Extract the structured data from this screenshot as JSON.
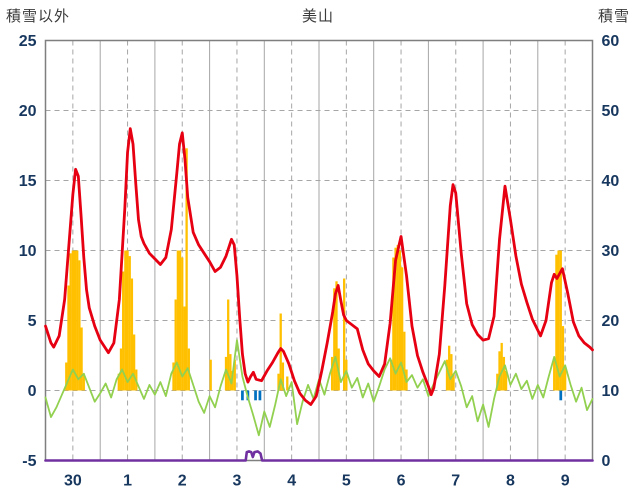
{
  "chart_data": {
    "type": "line",
    "title": "美山",
    "left_axis": {
      "label": "積雪以外",
      "ticks": [
        25,
        20,
        15,
        10,
        5,
        0,
        -5
      ],
      "min": -5,
      "max": 25
    },
    "right_axis": {
      "label": "積雪",
      "ticks": [
        60,
        50,
        40,
        30,
        20,
        10,
        0
      ],
      "min": 0,
      "max": 60
    },
    "x_axis": {
      "day_labels": [
        "30",
        "1",
        "2",
        "3",
        "4",
        "5",
        "6",
        "7",
        "8",
        "9"
      ],
      "days": 10
    },
    "style": {
      "grid_color": "#a6a6a6",
      "border_color": "#7f7f7f",
      "axis_text_color": "#17375e",
      "background": "#ffffff"
    },
    "series": [
      {
        "name": "sunshine-bars",
        "type": "bar",
        "axis": "left",
        "color": "#ffc000",
        "bar_width_days": 0.042,
        "points": [
          [
            0.38,
            2
          ],
          [
            0.42,
            7.5
          ],
          [
            0.46,
            9.8
          ],
          [
            0.5,
            10
          ],
          [
            0.54,
            10
          ],
          [
            0.58,
            10
          ],
          [
            0.62,
            9.3
          ],
          [
            0.66,
            4.5
          ],
          [
            0.7,
            1.2
          ],
          [
            1.34,
            1.2
          ],
          [
            1.38,
            3
          ],
          [
            1.42,
            8.5
          ],
          [
            1.46,
            10
          ],
          [
            1.5,
            10
          ],
          [
            1.54,
            9.6
          ],
          [
            1.58,
            8
          ],
          [
            1.62,
            4
          ],
          [
            1.66,
            1.5
          ],
          [
            2.34,
            2
          ],
          [
            2.38,
            6.5
          ],
          [
            2.42,
            10
          ],
          [
            2.46,
            10
          ],
          [
            2.5,
            9.5
          ],
          [
            2.54,
            6
          ],
          [
            2.58,
            17.3
          ],
          [
            2.62,
            3
          ],
          [
            3.02,
            2.2
          ],
          [
            3.3,
            2.4
          ],
          [
            3.34,
            6.5
          ],
          [
            3.38,
            2.6
          ],
          [
            3.42,
            1.4
          ],
          [
            3.46,
            2.2
          ],
          [
            4.26,
            1.2
          ],
          [
            4.3,
            5.5
          ],
          [
            4.34,
            2.0
          ],
          [
            4.42,
            1.0
          ],
          [
            5.24,
            2.4
          ],
          [
            5.28,
            7.3
          ],
          [
            5.32,
            7.8
          ],
          [
            5.36,
            3.0
          ],
          [
            5.46,
            8.0
          ],
          [
            5.5,
            2.2
          ],
          [
            6.32,
            2.2
          ],
          [
            6.36,
            9.5
          ],
          [
            6.4,
            10.2
          ],
          [
            6.44,
            10.4
          ],
          [
            6.48,
            10
          ],
          [
            6.52,
            8.8
          ],
          [
            6.56,
            4.2
          ],
          [
            6.6,
            1.5
          ],
          [
            7.34,
            2.2
          ],
          [
            7.38,
            3.2
          ],
          [
            7.42,
            2.6
          ],
          [
            7.46,
            1.2
          ],
          [
            8.26,
            1.2
          ],
          [
            8.3,
            2.8
          ],
          [
            8.34,
            3.4
          ],
          [
            8.38,
            2.4
          ],
          [
            8.42,
            1.4
          ],
          [
            9.3,
            2.2
          ],
          [
            9.34,
            9.7
          ],
          [
            9.38,
            10
          ],
          [
            9.42,
            10
          ],
          [
            9.46,
            4.6
          ],
          [
            9.5,
            1.6
          ]
        ]
      },
      {
        "name": "precipitation-marks",
        "type": "bar",
        "axis": "left",
        "color": "#0070c0",
        "bar_width_days": 0.05,
        "points": [
          [
            3.6,
            -0.7
          ],
          [
            3.7,
            -0.7
          ],
          [
            3.84,
            -0.7
          ],
          [
            3.92,
            -0.7
          ],
          [
            9.42,
            -0.7
          ]
        ]
      },
      {
        "name": "wind-line",
        "type": "line",
        "axis": "left",
        "color": "#92d050",
        "stroke_width": 1.8,
        "x0": 0,
        "dx": 0.1,
        "values": [
          -0.5,
          -1.9,
          -1.2,
          -0.3,
          0.6,
          1.5,
          0.8,
          1.2,
          0.2,
          -0.8,
          -0.2,
          0.5,
          -0.5,
          0.8,
          1.5,
          0.6,
          1.2,
          0.3,
          -0.6,
          0.4,
          -0.3,
          0.6,
          -0.4,
          1.2,
          2.0,
          1.0,
          1.6,
          0.4,
          -0.8,
          -1.6,
          -0.4,
          -1.2,
          0.3,
          1.5,
          0.5,
          3.6,
          1.0,
          -0.5,
          -1.8,
          -3.2,
          -1.5,
          -2.6,
          -1.0,
          0.8,
          -0.4,
          0.6,
          -2.4,
          -0.8,
          0.4,
          -0.6,
          0.8,
          -0.3,
          1.2,
          2.4,
          0.6,
          1.4,
          0.2,
          0.9,
          -0.5,
          0.5,
          -0.8,
          0.3,
          1.5,
          2.3,
          1.2,
          2.0,
          0.6,
          1.1,
          0.2,
          0.8,
          -0.4,
          0.5,
          1.3,
          2.1,
          0.8,
          1.4,
          0.3,
          -1.2,
          -0.4,
          -2.2,
          -1.0,
          -2.6,
          -0.6,
          1.0,
          1.8,
          0.4,
          1.2,
          0.1,
          0.7,
          -0.6,
          0.4,
          -0.5,
          1.0,
          2.4,
          1.0,
          1.8,
          0.4,
          -0.8,
          0.2,
          -1.4,
          -0.6
        ]
      },
      {
        "name": "temperature-line",
        "type": "line",
        "axis": "left",
        "color": "#e60012",
        "stroke_width": 2.8,
        "points": [
          [
            0,
            4.6
          ],
          [
            0.1,
            3.4
          ],
          [
            0.15,
            3.1
          ],
          [
            0.25,
            3.9
          ],
          [
            0.35,
            6.5
          ],
          [
            0.45,
            11.5
          ],
          [
            0.5,
            14.0
          ],
          [
            0.55,
            15.8
          ],
          [
            0.6,
            15.3
          ],
          [
            0.65,
            12.5
          ],
          [
            0.7,
            9.5
          ],
          [
            0.75,
            7.2
          ],
          [
            0.8,
            5.9
          ],
          [
            0.9,
            4.6
          ],
          [
            1.0,
            3.6
          ],
          [
            1.1,
            3.0
          ],
          [
            1.15,
            2.7
          ],
          [
            1.25,
            3.4
          ],
          [
            1.35,
            6.5
          ],
          [
            1.45,
            13.0
          ],
          [
            1.5,
            17.0
          ],
          [
            1.55,
            18.7
          ],
          [
            1.6,
            17.6
          ],
          [
            1.65,
            14.8
          ],
          [
            1.7,
            12.2
          ],
          [
            1.75,
            11.0
          ],
          [
            1.8,
            10.5
          ],
          [
            1.9,
            9.8
          ],
          [
            2.0,
            9.4
          ],
          [
            2.1,
            9.0
          ],
          [
            2.2,
            9.5
          ],
          [
            2.3,
            11.5
          ],
          [
            2.4,
            15.5
          ],
          [
            2.45,
            17.6
          ],
          [
            2.5,
            18.4
          ],
          [
            2.55,
            16.5
          ],
          [
            2.6,
            13.8
          ],
          [
            2.7,
            11.3
          ],
          [
            2.8,
            10.4
          ],
          [
            2.9,
            9.8
          ],
          [
            3.0,
            9.2
          ],
          [
            3.1,
            8.5
          ],
          [
            3.2,
            8.8
          ],
          [
            3.3,
            9.6
          ],
          [
            3.4,
            10.8
          ],
          [
            3.45,
            10.4
          ],
          [
            3.5,
            8.2
          ],
          [
            3.55,
            5.2
          ],
          [
            3.6,
            2.6
          ],
          [
            3.65,
            1.2
          ],
          [
            3.7,
            0.6
          ],
          [
            3.75,
            1.0
          ],
          [
            3.8,
            1.3
          ],
          [
            3.85,
            0.8
          ],
          [
            3.95,
            0.7
          ],
          [
            4.05,
            1.4
          ],
          [
            4.15,
            2.0
          ],
          [
            4.25,
            2.7
          ],
          [
            4.3,
            3.0
          ],
          [
            4.35,
            2.8
          ],
          [
            4.45,
            1.9
          ],
          [
            4.55,
            0.7
          ],
          [
            4.65,
            -0.2
          ],
          [
            4.75,
            -0.7
          ],
          [
            4.85,
            -1.0
          ],
          [
            4.95,
            -0.4
          ],
          [
            5.05,
            1.4
          ],
          [
            5.15,
            3.4
          ],
          [
            5.25,
            5.6
          ],
          [
            5.3,
            6.9
          ],
          [
            5.35,
            7.5
          ],
          [
            5.4,
            6.4
          ],
          [
            5.45,
            5.4
          ],
          [
            5.5,
            5.0
          ],
          [
            5.6,
            4.7
          ],
          [
            5.7,
            4.4
          ],
          [
            5.8,
            2.9
          ],
          [
            5.9,
            1.9
          ],
          [
            6.0,
            1.4
          ],
          [
            6.1,
            1.0
          ],
          [
            6.2,
            1.9
          ],
          [
            6.3,
            4.8
          ],
          [
            6.4,
            9.3
          ],
          [
            6.5,
            11.0
          ],
          [
            6.6,
            8.2
          ],
          [
            6.7,
            4.6
          ],
          [
            6.8,
            2.5
          ],
          [
            6.9,
            1.3
          ],
          [
            7.0,
            0.3
          ],
          [
            7.05,
            -0.3
          ],
          [
            7.1,
            0.2
          ],
          [
            7.2,
            2.6
          ],
          [
            7.3,
            7.5
          ],
          [
            7.4,
            13.2
          ],
          [
            7.45,
            14.7
          ],
          [
            7.5,
            14.1
          ],
          [
            7.6,
            9.8
          ],
          [
            7.7,
            6.2
          ],
          [
            7.8,
            4.7
          ],
          [
            7.9,
            4.0
          ],
          [
            8.0,
            3.6
          ],
          [
            8.1,
            3.7
          ],
          [
            8.2,
            5.3
          ],
          [
            8.3,
            10.8
          ],
          [
            8.4,
            14.6
          ],
          [
            8.5,
            12.2
          ],
          [
            8.6,
            9.6
          ],
          [
            8.7,
            7.6
          ],
          [
            8.8,
            6.3
          ],
          [
            8.9,
            5.1
          ],
          [
            9.0,
            4.3
          ],
          [
            9.05,
            3.9
          ],
          [
            9.15,
            5.0
          ],
          [
            9.25,
            7.7
          ],
          [
            9.3,
            8.3
          ],
          [
            9.35,
            8.0
          ],
          [
            9.45,
            8.7
          ],
          [
            9.55,
            6.9
          ],
          [
            9.65,
            4.9
          ],
          [
            9.75,
            3.9
          ],
          [
            9.85,
            3.4
          ],
          [
            9.95,
            3.1
          ],
          [
            10,
            2.9
          ]
        ]
      },
      {
        "name": "snow-depth-line",
        "type": "line",
        "axis": "right",
        "color": "#7030a0",
        "stroke_width": 2.6,
        "points": [
          [
            0,
            0
          ],
          [
            3.66,
            0
          ],
          [
            3.68,
            1.2
          ],
          [
            3.72,
            1.3
          ],
          [
            3.76,
            1.2
          ],
          [
            3.79,
            0.5
          ],
          [
            3.82,
            1.2
          ],
          [
            3.88,
            1.3
          ],
          [
            3.93,
            1.0
          ],
          [
            3.96,
            0
          ],
          [
            10,
            0
          ]
        ]
      }
    ]
  }
}
